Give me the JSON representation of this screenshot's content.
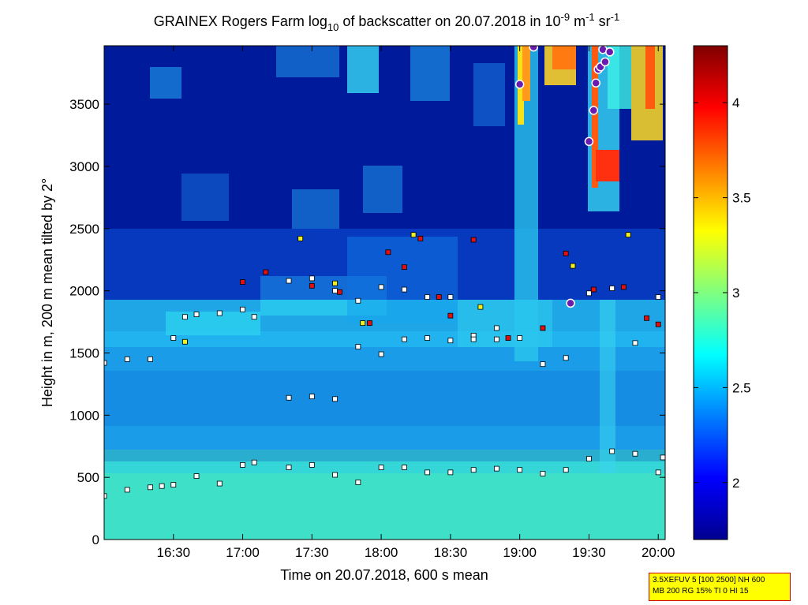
{
  "chart_data": {
    "type": "heatmap",
    "title_parts": {
      "main": "GRAINEX Rogers Farm log",
      "sub": "10",
      "mid": " of backscatter on 20.07.2018 in 10",
      "exp1": "-9",
      "unit": " m",
      "exp2": "-1",
      "unit2": " sr",
      "exp3": "-1"
    },
    "xlabel": "Time on 20.07.2018, 600 s mean",
    "ylabel": "Height in m, 200 m mean tilted by 2°",
    "x_ticks": [
      "16:30",
      "17:00",
      "17:30",
      "18:00",
      "18:30",
      "19:00",
      "19:30",
      "20:00"
    ],
    "x_tick_minutes": [
      990,
      1020,
      1050,
      1080,
      1110,
      1140,
      1170,
      1200
    ],
    "xlim_minutes": [
      960,
      1203
    ],
    "y_ticks": [
      "0",
      "500",
      "1000",
      "1500",
      "2000",
      "2500",
      "3000",
      "3500"
    ],
    "y_tick_values": [
      0,
      500,
      1000,
      1500,
      2000,
      2500,
      3000,
      3500
    ],
    "ylim": [
      0,
      3970
    ],
    "colorbar": {
      "ticks": [
        "2",
        "2.5",
        "3",
        "3.5",
        "4"
      ],
      "tick_values": [
        2,
        2.5,
        3,
        3.5,
        4
      ],
      "range": [
        1.7,
        4.3
      ],
      "colormap": "jet"
    },
    "layer_series": [
      {
        "marker": "white square",
        "x": [
          960,
          970,
          980,
          985,
          990,
          1000,
          1010,
          1020,
          1025,
          1040,
          1050,
          1060,
          1070,
          1080,
          1090,
          1100,
          1110,
          1120,
          1130,
          1140,
          1150,
          1160,
          1170,
          1180,
          1190,
          1200,
          1202
        ],
        "y": [
          350,
          400,
          420,
          430,
          440,
          510,
          450,
          600,
          620,
          580,
          600,
          520,
          460,
          580,
          580,
          540,
          540,
          560,
          570,
          560,
          530,
          560,
          650,
          710,
          690,
          540,
          660
        ]
      },
      {
        "marker": "white square",
        "x": [
          960,
          970,
          980,
          990,
          995,
          1000,
          1010,
          1020,
          1025,
          1040,
          1050,
          1060,
          1070,
          1080,
          1090,
          1100,
          1110,
          1120,
          1130,
          1140,
          1150,
          1160,
          1170,
          1180,
          1190,
          1200
        ],
        "y": [
          1420,
          1450,
          1450,
          1620,
          1790,
          1810,
          1820,
          1850,
          1790,
          2080,
          2100,
          2000,
          1920,
          2030,
          2010,
          1950,
          1950,
          1640,
          1610,
          1620,
          1410,
          1460,
          1980,
          2020,
          1580,
          1950
        ]
      },
      {
        "marker": "white square",
        "x": [
          1040,
          1050,
          1060,
          1070,
          1080,
          1090,
          1100,
          1110,
          1120,
          1130
        ],
        "y": [
          1140,
          1150,
          1130,
          1550,
          1490,
          1610,
          1620,
          1600,
          1610,
          1700
        ]
      },
      {
        "marker": "red square",
        "x": [
          1020,
          1030,
          1050,
          1062,
          1075,
          1083,
          1090,
          1097,
          1105,
          1110,
          1120,
          1135,
          1150,
          1160,
          1172,
          1185,
          1195,
          1200
        ],
        "y": [
          2070,
          2150,
          2040,
          1990,
          1740,
          2310,
          2190,
          2420,
          1950,
          1800,
          2410,
          1620,
          1700,
          2300,
          2010,
          2030,
          1780,
          1730
        ]
      },
      {
        "marker": "yellow square",
        "x": [
          995,
          1045,
          1060,
          1072,
          1094,
          1123,
          1163,
          1187
        ],
        "y": [
          1590,
          2420,
          2060,
          1740,
          2450,
          1870,
          2200,
          2450
        ]
      },
      {
        "marker": "purple circle",
        "x": [
          1140,
          1146,
          1162,
          1170,
          1172,
          1173,
          1174,
          1175,
          1176,
          1177,
          1179
        ],
        "y": [
          3660,
          3960,
          1900,
          3200,
          3450,
          3670,
          3780,
          3800,
          3940,
          3840,
          3920
        ]
      }
    ],
    "info_box": [
      "3.5XEFUV 5 [100 2500] NH 600",
      "MB 200 RG 15% TI 0 HI 15"
    ]
  }
}
